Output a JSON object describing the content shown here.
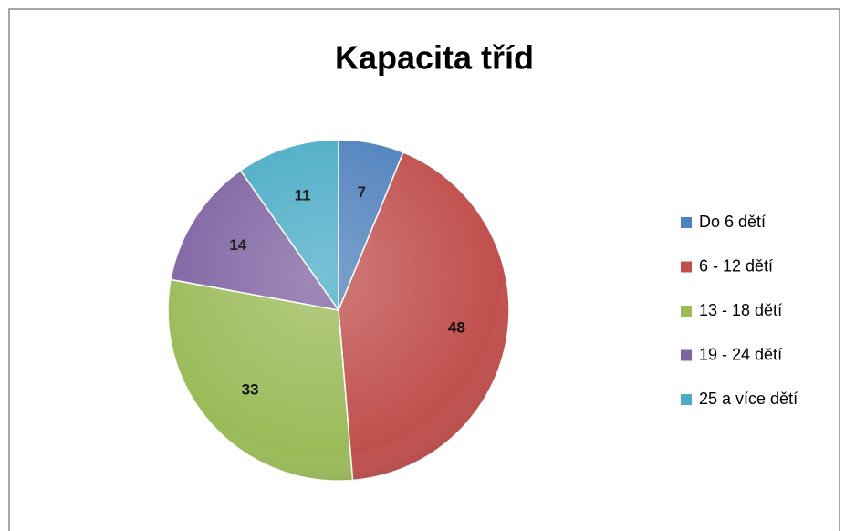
{
  "chart_data": {
    "type": "pie",
    "title": "Kapacita tříd",
    "categories": [
      "Do 6 dětí",
      "6 - 12 dětí",
      "13 - 18 dětí",
      "19 - 24 dětí",
      "25 a více dětí"
    ],
    "values": [
      7,
      48,
      33,
      14,
      11
    ],
    "colors": [
      "#4f81bd",
      "#c0504d",
      "#9bbb59",
      "#8064a2",
      "#4bacc6"
    ],
    "legend": "right"
  }
}
